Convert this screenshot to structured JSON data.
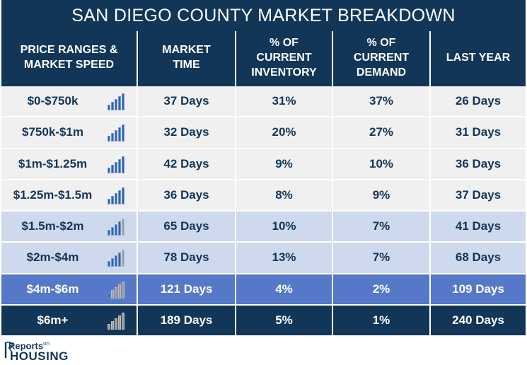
{
  "title": "SAN DIEGO COUNTY MARKET BREAKDOWN",
  "headers": [
    "PRICE RANGES &\nMARKET SPEED",
    "MARKET\nTIME",
    "% OF\nCURRENT\nINVENTORY",
    "% OF\nCURRENT\nDEMAND",
    "LAST YEAR"
  ],
  "colors": {
    "header_bg": "#123658",
    "row_light": "#f0f0f0",
    "row_medium": "#cfd9ee",
    "row_blue": "#5678c8",
    "row_dark": "#123658",
    "bar_blue": "#2f64b0",
    "bar_gray": "#9a9a9a"
  },
  "rows": [
    {
      "range": "$0-$750k",
      "market_time": "37 Days",
      "inventory": "31%",
      "demand": "37%",
      "last_year": "26 Days",
      "speed_bars_filled": 5,
      "style": "light"
    },
    {
      "range": "$750k-$1m",
      "market_time": "32 Days",
      "inventory": "20%",
      "demand": "27%",
      "last_year": "31 Days",
      "speed_bars_filled": 5,
      "style": "light"
    },
    {
      "range": "$1m-$1.25m",
      "market_time": "42 Days",
      "inventory": "9%",
      "demand": "10%",
      "last_year": "36 Days",
      "speed_bars_filled": 5,
      "style": "light"
    },
    {
      "range": "$1.25m-$1.5m",
      "market_time": "36 Days",
      "inventory": "8%",
      "demand": "9%",
      "last_year": "37 Days",
      "speed_bars_filled": 5,
      "style": "light"
    },
    {
      "range": "$1.5m-$2m",
      "market_time": "65 Days",
      "inventory": "10%",
      "demand": "7%",
      "last_year": "41 Days",
      "speed_bars_filled": 4,
      "style": "medium"
    },
    {
      "range": "$2m-$4m",
      "market_time": "78 Days",
      "inventory": "13%",
      "demand": "7%",
      "last_year": "68 Days",
      "speed_bars_filled": 4,
      "style": "medium"
    },
    {
      "range": "$4m-$6m",
      "market_time": "121 Days",
      "inventory": "4%",
      "demand": "2%",
      "last_year": "109 Days",
      "speed_bars_filled": 1,
      "style": "blue"
    },
    {
      "range": "$6m+",
      "market_time": "189 Days",
      "inventory": "5%",
      "demand": "1%",
      "last_year": "240 Days",
      "speed_bars_filled": 0,
      "style": "dark"
    }
  ],
  "logo": {
    "reports": "Reports",
    "on": "on",
    "housing": "HOUSING"
  }
}
